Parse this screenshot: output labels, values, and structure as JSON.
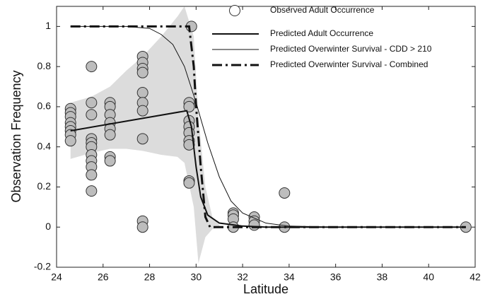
{
  "chart_data": {
    "type": "scatter-line",
    "xlabel": "Latitude",
    "ylabel": "Observation Frequency",
    "xlim": [
      24,
      42
    ],
    "ylim": [
      -0.2,
      1.1
    ],
    "xticks": [
      24,
      26,
      28,
      30,
      32,
      34,
      36,
      38,
      40,
      42
    ],
    "yticks": [
      -0.2,
      0,
      0.2,
      0.4,
      0.6,
      0.8,
      1
    ],
    "band": {
      "color": "#dcdcdc",
      "x": [
        24.6,
        25.5,
        26.3,
        27,
        27.7,
        28.5,
        29.2,
        29.5,
        29.9,
        30.1,
        30.4,
        30.7,
        31
      ],
      "upper": [
        0.62,
        0.65,
        0.7,
        0.78,
        0.85,
        0.95,
        1.05,
        1.1,
        0.95,
        0.55,
        0.2,
        0.05,
        0.01
      ],
      "lower": [
        0.34,
        0.37,
        0.39,
        0.39,
        0.38,
        0.36,
        0.35,
        0.32,
        0.1,
        -0.18,
        -0.05,
        -0.01,
        0
      ]
    },
    "points": {
      "name": "Observed Adult Occurrence",
      "color": "#bdbdbd",
      "x": [
        24.6,
        24.6,
        24.6,
        24.6,
        24.6,
        24.6,
        24.6,
        24.6,
        25.5,
        25.5,
        25.5,
        25.5,
        25.5,
        25.5,
        25.5,
        25.5,
        25.5,
        25.5,
        25.5,
        26.3,
        26.3,
        26.3,
        26.3,
        26.3,
        26.3,
        26.3,
        26.3,
        27.7,
        27.7,
        27.7,
        27.7,
        27.7,
        27.7,
        27.7,
        27.7,
        27.7,
        27.7,
        29.8,
        29.7,
        29.7,
        29.7,
        29.7,
        29.7,
        29.7,
        29.7,
        29.7,
        29.7,
        31.6,
        31.6,
        31.6,
        31.6,
        32.5,
        32.5,
        32.5,
        33.8,
        33.8,
        41.6
      ],
      "values": [
        0.59,
        0.57,
        0.55,
        0.52,
        0.5,
        0.48,
        0.46,
        0.43,
        0.8,
        0.62,
        0.56,
        0.44,
        0.42,
        0.4,
        0.36,
        0.33,
        0.3,
        0.26,
        0.18,
        0.62,
        0.6,
        0.56,
        0.52,
        0.49,
        0.46,
        0.35,
        0.33,
        0.85,
        0.82,
        0.79,
        0.77,
        0.67,
        0.62,
        0.58,
        0.44,
        0.03,
        0,
        1,
        0.62,
        0.6,
        0.53,
        0.5,
        0.47,
        0.43,
        0.41,
        0.23,
        0.22,
        0.07,
        0.06,
        0.04,
        0,
        0.05,
        0.03,
        0.01,
        0.17,
        0,
        0
      ]
    },
    "lines": [
      {
        "name": "Predicted Adult Occurrence",
        "color": "#111",
        "linewidth": 2,
        "linestyle": "solid",
        "x": [
          24.6,
          29.6,
          29.8,
          30,
          30.2,
          30.5,
          31,
          32,
          33,
          41.6
        ],
        "values": [
          0.48,
          0.58,
          0.5,
          0.3,
          0.15,
          0.06,
          0.02,
          0.005,
          0,
          0
        ]
      },
      {
        "name": "Predicted Overwinter Survival - CDD > 210",
        "color": "#111",
        "linewidth": 1,
        "linestyle": "solid",
        "x": [
          24.6,
          27,
          28,
          28.5,
          29,
          29.5,
          30,
          30.5,
          31,
          31.5,
          32,
          33,
          34,
          36,
          41.6
        ],
        "values": [
          1,
          1,
          0.99,
          0.96,
          0.91,
          0.8,
          0.62,
          0.42,
          0.25,
          0.13,
          0.07,
          0.02,
          0.005,
          0,
          0
        ]
      },
      {
        "name": "Predicted Overwinter Survival - Combined",
        "color": "#111",
        "linewidth": 3,
        "linestyle": "dashdot",
        "x": [
          24.6,
          29.7,
          29.9,
          30,
          30.2,
          30.4,
          30.6,
          41.6
        ],
        "values": [
          1,
          1,
          0.8,
          0.6,
          0.3,
          0.05,
          0,
          0
        ]
      }
    ]
  }
}
